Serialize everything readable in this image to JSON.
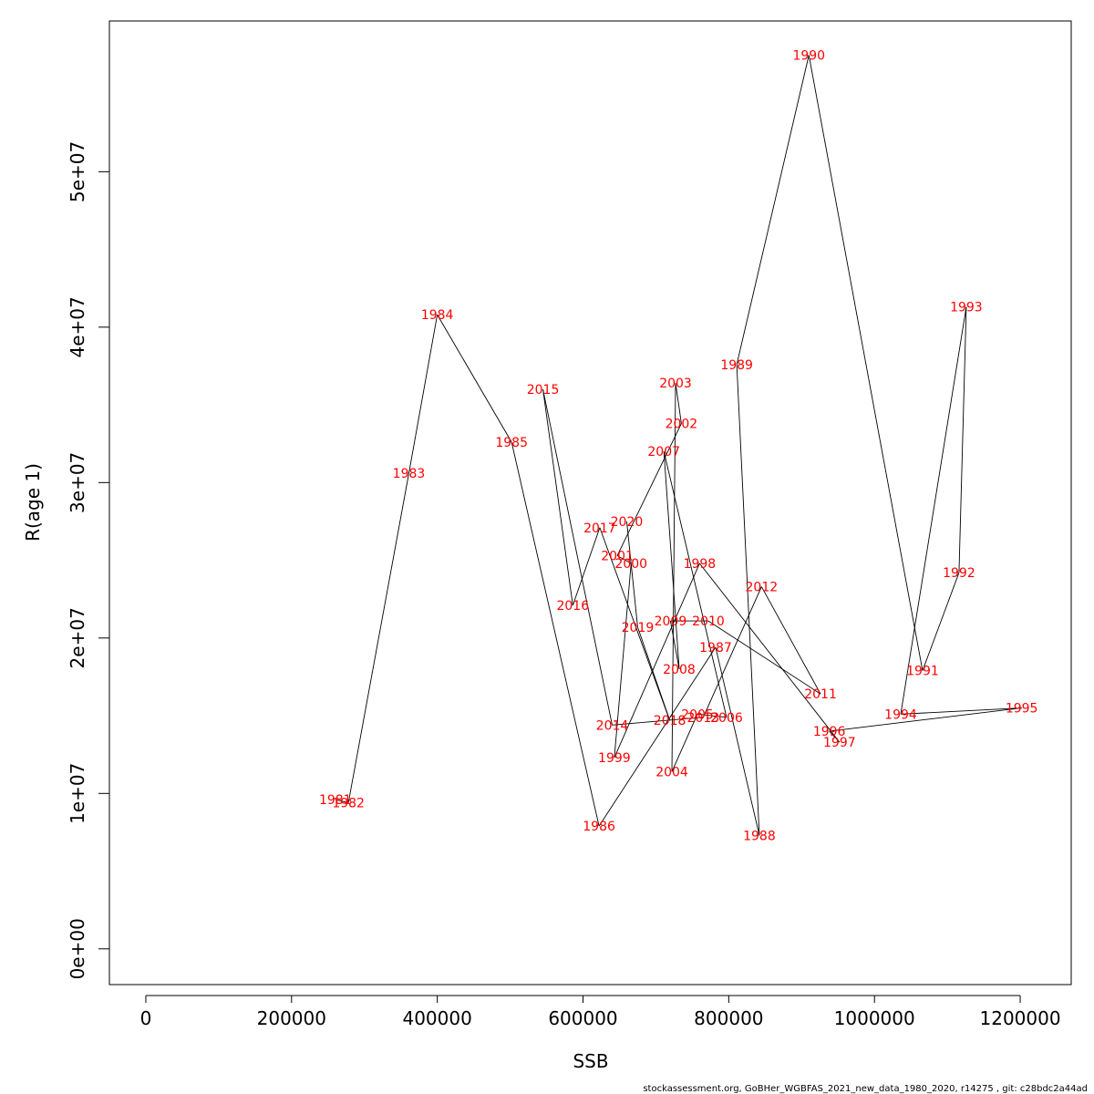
{
  "chart_data": {
    "type": "line",
    "title": "",
    "xlabel": "SSB",
    "ylabel": "R(age 1)",
    "xlim": [
      -50000,
      1270000
    ],
    "ylim": [
      -2300000,
      59700000
    ],
    "x_ticks": [
      0,
      200000,
      400000,
      600000,
      800000,
      1000000,
      1200000
    ],
    "x_tick_labels": [
      "0",
      "200000",
      "400000",
      "600000",
      "800000",
      "1000000",
      "1200000"
    ],
    "y_ticks": [
      0,
      10000000,
      20000000,
      30000000,
      40000000,
      50000000
    ],
    "y_tick_labels": [
      "0e+00",
      "1e+07",
      "2e+07",
      "3e+07",
      "4e+07",
      "5e+07"
    ],
    "grid": false,
    "line_color": "#000000",
    "label_color": "#ff0000",
    "points": [
      {
        "year": "1981",
        "x": 260000,
        "y": 9600000
      },
      {
        "year": "1982",
        "x": 278000,
        "y": 9400000
      },
      {
        "year": "1983",
        "x": 361000,
        "y": 30600000
      },
      {
        "year": "1984",
        "x": 400000,
        "y": 40800000
      },
      {
        "year": "1985",
        "x": 502000,
        "y": 32600000
      },
      {
        "year": "1986",
        "x": 622000,
        "y": 7900000
      },
      {
        "year": "1987",
        "x": 782000,
        "y": 19400000
      },
      {
        "year": "1988",
        "x": 842000,
        "y": 7300000
      },
      {
        "year": "1989",
        "x": 811000,
        "y": 37600000
      },
      {
        "year": "1990",
        "x": 910000,
        "y": 57500000
      },
      {
        "year": "1991",
        "x": 1066000,
        "y": 17900000
      },
      {
        "year": "1992",
        "x": 1116000,
        "y": 24200000
      },
      {
        "year": "1993",
        "x": 1126000,
        "y": 41300000
      },
      {
        "year": "1994",
        "x": 1036000,
        "y": 15100000
      },
      {
        "year": "1995",
        "x": 1202000,
        "y": 15500000
      },
      {
        "year": "1996",
        "x": 938000,
        "y": 14000000
      },
      {
        "year": "1997",
        "x": 952000,
        "y": 13300000
      },
      {
        "year": "1998",
        "x": 760000,
        "y": 24800000
      },
      {
        "year": "1999",
        "x": 643000,
        "y": 12300000
      },
      {
        "year": "2000",
        "x": 666000,
        "y": 24800000
      },
      {
        "year": "2001",
        "x": 647000,
        "y": 25300000
      },
      {
        "year": "2002",
        "x": 735000,
        "y": 33800000
      },
      {
        "year": "2003",
        "x": 727000,
        "y": 36400000
      },
      {
        "year": "2004",
        "x": 722000,
        "y": 11400000
      },
      {
        "year": "2005",
        "x": 757000,
        "y": 15100000
      },
      {
        "year": "2006",
        "x": 797000,
        "y": 14900000
      },
      {
        "year": "2007",
        "x": 711000,
        "y": 32000000
      },
      {
        "year": "2008",
        "x": 732000,
        "y": 18000000
      },
      {
        "year": "2009",
        "x": 720000,
        "y": 21100000
      },
      {
        "year": "2010",
        "x": 772000,
        "y": 21100000
      },
      {
        "year": "2011",
        "x": 926000,
        "y": 16400000
      },
      {
        "year": "2012",
        "x": 845000,
        "y": 23300000
      },
      {
        "year": "2013",
        "x": 765000,
        "y": 14900000
      },
      {
        "year": "2014",
        "x": 640000,
        "y": 14400000
      },
      {
        "year": "2015",
        "x": 545000,
        "y": 36000000
      },
      {
        "year": "2016",
        "x": 586000,
        "y": 22100000
      },
      {
        "year": "2017",
        "x": 623000,
        "y": 27100000
      },
      {
        "year": "2018",
        "x": 719000,
        "y": 14700000
      },
      {
        "year": "2019",
        "x": 675000,
        "y": 20700000
      },
      {
        "year": "2020",
        "x": 660000,
        "y": 27500000
      }
    ]
  },
  "footer": {
    "source_text": "stockassessment.org, GoBHer_WGBFAS_2021_new_data_1980_2020, r14275 , git: c28bdc2a44ad"
  }
}
